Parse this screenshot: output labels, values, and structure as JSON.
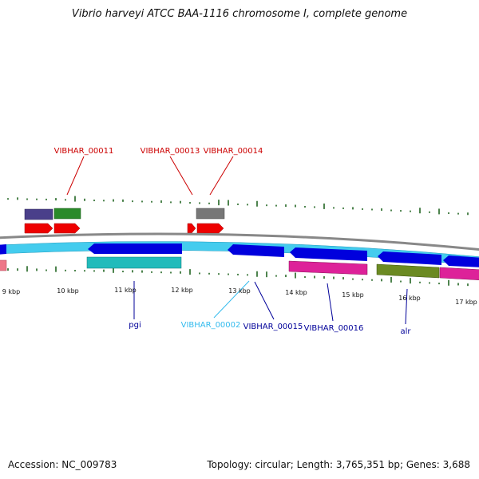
{
  "title": "Vibrio harveyi ATCC BAA-1116 chromosome I, complete genome",
  "footer": {
    "accession": "Accession: NC_009783",
    "info": "Topology: circular; Length: 3,765,351 bp; Genes: 3,688"
  },
  "scale": {
    "ticks": [
      "9 kbp",
      "10 kbp",
      "11 kbp",
      "12 kbp",
      "13 kbp",
      "14 kbp",
      "15 kbp",
      "16 kbp",
      "17 kbp"
    ]
  },
  "genes": [
    {
      "name": "VIBHAR_00011",
      "color": "#cc0000"
    },
    {
      "name": "VIBHAR_00013",
      "color": "#cc0000"
    },
    {
      "name": "VIBHAR_00014",
      "color": "#cc0000"
    },
    {
      "name": "pgi",
      "color": "#000099"
    },
    {
      "name": "VIBHAR_00002",
      "color": "#33bbee"
    },
    {
      "name": "VIBHAR_00015",
      "color": "#000099"
    },
    {
      "name": "VIBHAR_00016",
      "color": "#000099"
    },
    {
      "name": "alr",
      "color": "#000099"
    }
  ],
  "colors": {
    "backbone": "#888888",
    "skew_ticks": "#226622",
    "cds_forward_red": "#ee0000",
    "cds_blue": "#0000dd",
    "cds_light_blue": "#44ccee",
    "feature_purple": "#4a3f8a",
    "feature_green": "#2a8a2a",
    "feature_gray": "#777777",
    "feature_teal": "#22bbbb",
    "feature_magenta": "#dd2299",
    "feature_olive": "#6b8a22",
    "feature_pink": "#ee7788"
  }
}
